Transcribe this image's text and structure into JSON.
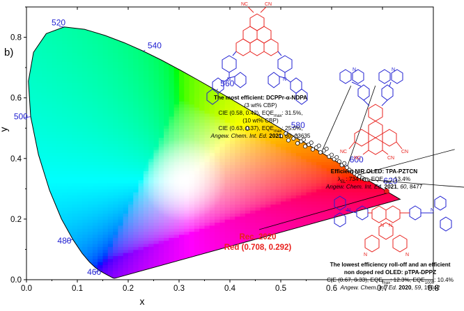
{
  "panel_label": "b)",
  "chart_data": {
    "type": "scatter",
    "xlabel": "x",
    "ylabel": "y",
    "xlim": [
      0.0,
      0.8
    ],
    "ylim": [
      0.0,
      0.9
    ],
    "xticks": [
      "0.0",
      "0.1",
      "0.2",
      "0.3",
      "0.4",
      "0.5",
      "0.6",
      "0.7",
      "0.8"
    ],
    "yticks": [
      "0.0",
      "0.2",
      "0.4",
      "0.6",
      "0.8"
    ],
    "spectral_locus": [
      [
        0.1741,
        0.005
      ],
      [
        0.1738,
        0.0049
      ],
      [
        0.1736,
        0.0049
      ],
      [
        0.1733,
        0.0048
      ],
      [
        0.173,
        0.0048
      ],
      [
        0.1726,
        0.0048
      ],
      [
        0.1721,
        0.0048
      ],
      [
        0.1714,
        0.0051
      ],
      [
        0.1703,
        0.0058
      ],
      [
        0.1689,
        0.0069
      ],
      [
        0.1669,
        0.0086
      ],
      [
        0.1644,
        0.0109
      ],
      [
        0.1611,
        0.0138
      ],
      [
        0.1566,
        0.0177
      ],
      [
        0.151,
        0.0227
      ],
      [
        0.144,
        0.0297
      ],
      [
        0.1355,
        0.0399
      ],
      [
        0.1241,
        0.0578
      ],
      [
        0.1096,
        0.0868
      ],
      [
        0.0913,
        0.1327
      ],
      [
        0.0687,
        0.2007
      ],
      [
        0.0454,
        0.295
      ],
      [
        0.0235,
        0.4127
      ],
      [
        0.0082,
        0.5384
      ],
      [
        0.0039,
        0.6548
      ],
      [
        0.0139,
        0.7502
      ],
      [
        0.0389,
        0.812
      ],
      [
        0.0743,
        0.8338
      ],
      [
        0.1142,
        0.8262
      ],
      [
        0.1547,
        0.8059
      ],
      [
        0.1929,
        0.7816
      ],
      [
        0.2296,
        0.7543
      ],
      [
        0.2658,
        0.7243
      ],
      [
        0.3016,
        0.6923
      ],
      [
        0.3373,
        0.6589
      ],
      [
        0.3731,
        0.6245
      ],
      [
        0.4087,
        0.5896
      ],
      [
        0.4441,
        0.5547
      ],
      [
        0.4788,
        0.5202
      ],
      [
        0.5125,
        0.4866
      ],
      [
        0.5448,
        0.4544
      ],
      [
        0.5752,
        0.4242
      ],
      [
        0.6029,
        0.3965
      ],
      [
        0.627,
        0.3725
      ],
      [
        0.6482,
        0.3514
      ],
      [
        0.6658,
        0.334
      ],
      [
        0.6801,
        0.3197
      ],
      [
        0.6915,
        0.3083
      ],
      [
        0.7006,
        0.2993
      ],
      [
        0.7079,
        0.292
      ],
      [
        0.714,
        0.2859
      ],
      [
        0.719,
        0.2809
      ],
      [
        0.723,
        0.277
      ],
      [
        0.726,
        0.274
      ],
      [
        0.7283,
        0.2717
      ],
      [
        0.73,
        0.27
      ],
      [
        0.7311,
        0.2689
      ],
      [
        0.732,
        0.268
      ],
      [
        0.7327,
        0.2673
      ],
      [
        0.7334,
        0.2666
      ],
      [
        0.734,
        0.266
      ],
      [
        0.7344,
        0.2656
      ],
      [
        0.7346,
        0.2654
      ],
      [
        0.7347,
        0.2653
      ]
    ],
    "wavelength_labels": [
      {
        "text": "460",
        "x": 0.144,
        "y": 0.03
      },
      {
        "text": "480",
        "x": 0.091,
        "y": 0.133
      },
      {
        "text": "500",
        "x": 0.008,
        "y": 0.538
      },
      {
        "text": "520",
        "x": 0.074,
        "y": 0.834
      },
      {
        "text": "540",
        "x": 0.23,
        "y": 0.754
      },
      {
        "text": "560",
        "x": 0.373,
        "y": 0.624
      },
      {
        "text": "580",
        "x": 0.512,
        "y": 0.487
      },
      {
        "text": "600",
        "x": 0.627,
        "y": 0.373
      },
      {
        "text": "620",
        "x": 0.691,
        "y": 0.308
      }
    ],
    "white_point": {
      "x": 0.4345,
      "y": 0.4994
    },
    "data_points": [
      {
        "x": 0.5,
        "y": 0.474
      },
      {
        "x": 0.51,
        "y": 0.482
      },
      {
        "x": 0.515,
        "y": 0.46
      },
      {
        "x": 0.525,
        "y": 0.466
      },
      {
        "x": 0.53,
        "y": 0.472
      },
      {
        "x": 0.533,
        "y": 0.45
      },
      {
        "x": 0.54,
        "y": 0.456
      },
      {
        "x": 0.545,
        "y": 0.462
      },
      {
        "x": 0.548,
        "y": 0.44
      },
      {
        "x": 0.555,
        "y": 0.446
      },
      {
        "x": 0.56,
        "y": 0.452
      },
      {
        "x": 0.563,
        "y": 0.43
      },
      {
        "x": 0.57,
        "y": 0.436
      },
      {
        "x": 0.575,
        "y": 0.442
      },
      {
        "x": 0.578,
        "y": 0.42
      },
      {
        "x": 0.585,
        "y": 0.426
      },
      {
        "x": 0.59,
        "y": 0.432
      },
      {
        "x": 0.595,
        "y": 0.406
      },
      {
        "x": 0.6,
        "y": 0.412
      },
      {
        "x": 0.605,
        "y": 0.398
      },
      {
        "x": 0.61,
        "y": 0.404
      },
      {
        "x": 0.615,
        "y": 0.39
      },
      {
        "x": 0.62,
        "y": 0.378
      },
      {
        "x": 0.625,
        "y": 0.384
      },
      {
        "x": 0.63,
        "y": 0.37
      },
      {
        "x": 0.635,
        "y": 0.362
      },
      {
        "x": 0.64,
        "y": 0.356
      },
      {
        "x": 0.645,
        "y": 0.35
      },
      {
        "x": 0.65,
        "y": 0.345
      },
      {
        "x": 0.655,
        "y": 0.34
      },
      {
        "x": 0.66,
        "y": 0.336
      },
      {
        "x": 0.665,
        "y": 0.331
      },
      {
        "x": 0.67,
        "y": 0.33
      }
    ],
    "rec2020_point": {
      "x": 0.708,
      "y": 0.292
    },
    "rec2020_label": [
      "Rec. 2020",
      "Red (0.708, 0.292)"
    ],
    "callouts": [
      {
        "from": {
          "x": 0.58,
          "y": 0.42
        },
        "to": {
          "x": 0.638,
          "y": 0.64
        }
      },
      {
        "from": {
          "x": 0.63,
          "y": 0.37
        },
        "to": {
          "x": 0.686,
          "y": 0.64
        }
      },
      {
        "from": {
          "x": 0.65,
          "y": 0.345
        },
        "to": {
          "x": 0.842,
          "y": 0.43
        }
      },
      {
        "from": {
          "x": 0.67,
          "y": 0.33
        },
        "to": {
          "x": 0.9,
          "y": 0.3
        }
      }
    ],
    "annotations": {
      "dcppr": {
        "lines": [
          [
            {
              "t": "The most efficient: DCPPr-α-NDPA",
              "b": true
            }
          ],
          [
            {
              "t": "(3 wt% CBP)"
            }
          ],
          [
            {
              "t": "CIE (0.58, 0.42), EQE"
            },
            {
              "t": "max",
              "sub": true
            },
            {
              "t": ": 31.5%,"
            }
          ],
          [
            {
              "t": "(10 wt% CBP)"
            }
          ],
          [
            {
              "t": "CIE (0.63, 0.37), EQE"
            },
            {
              "t": "max",
              "sub": true
            },
            {
              "t": ": 25.0%,"
            }
          ],
          [
            {
              "t": "Angew. Chem. Int. Ed.",
              "i": true
            },
            {
              "t": " "
            },
            {
              "t": "2021",
              "b": true
            },
            {
              "t": ", "
            },
            {
              "t": "60",
              "i": true
            },
            {
              "t": ", 23635"
            }
          ]
        ]
      },
      "pztcn": {
        "lines": [
          [
            {
              "t": "Efficient NIR OLED: TPA-PZTCN",
              "b": true
            }
          ],
          [
            {
              "t": "λ"
            },
            {
              "t": "EL",
              "sub": true
            },
            {
              "t": ": 734 nm, EQE"
            },
            {
              "t": "max",
              "sub": true
            },
            {
              "t": ": 13.4%"
            }
          ],
          [
            {
              "t": "Angew. Chem. Int. Ed.",
              "i": true
            },
            {
              "t": " "
            },
            {
              "t": "2021",
              "b": true
            },
            {
              "t": ", "
            },
            {
              "t": "60",
              "i": true
            },
            {
              "t": ", 8477"
            }
          ]
        ]
      },
      "dppz": {
        "lines": [
          [
            {
              "t": "The lowest efficiency roll-off and an efficient",
              "b": true
            }
          ],
          [
            {
              "t": "non doped red OLED: pTPA-DPPZ",
              "b": true
            }
          ],
          [
            {
              "t": "CIE (0.67, 0.33), EQE"
            },
            {
              "t": "max",
              "sub": true
            },
            {
              "t": ": 12.3%, EQE"
            },
            {
              "t": "1000",
              "sub": true
            },
            {
              "t": ": 10.4%"
            }
          ],
          [
            {
              "t": "Angew. Chem. Int. Ed.",
              "i": true
            },
            {
              "t": " "
            },
            {
              "t": "2020",
              "b": true
            },
            {
              "t": ", "
            },
            {
              "t": "59",
              "i": true
            },
            {
              "t": ", 19042"
            }
          ]
        ]
      },
      "cn_labels": [
        "NC",
        "CN",
        "NC",
        "CN",
        "NC",
        "CN"
      ],
      "n_labels": [
        "N",
        "N",
        "N",
        "N",
        "N",
        "N",
        "N",
        "N",
        "N",
        "N",
        "N",
        "N",
        "N",
        "N"
      ]
    },
    "colors": {
      "axis": "#000000",
      "wavelength_text": "#1f1fd1",
      "red_text": "#e8201c",
      "donor": "#1f1fd1",
      "acceptor": "#e8201c",
      "callout_line": "#000000"
    }
  }
}
